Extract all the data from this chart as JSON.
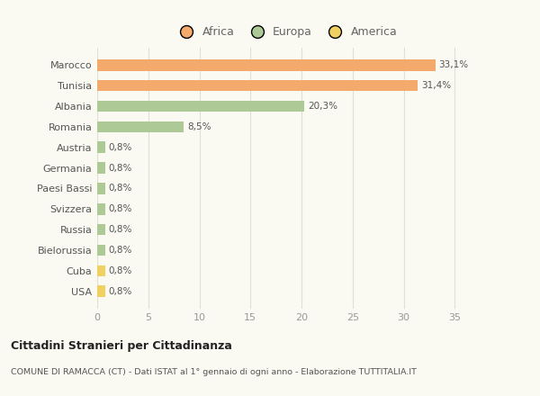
{
  "countries": [
    "Marocco",
    "Tunisia",
    "Albania",
    "Romania",
    "Austria",
    "Germania",
    "Paesi Bassi",
    "Svizzera",
    "Russia",
    "Bielorussia",
    "Cuba",
    "USA"
  ],
  "values": [
    33.1,
    31.4,
    20.3,
    8.5,
    0.8,
    0.8,
    0.8,
    0.8,
    0.8,
    0.8,
    0.8,
    0.8
  ],
  "labels": [
    "33,1%",
    "31,4%",
    "20,3%",
    "8,5%",
    "0,8%",
    "0,8%",
    "0,8%",
    "0,8%",
    "0,8%",
    "0,8%",
    "0,8%",
    "0,8%"
  ],
  "colors": [
    "#f4a96d",
    "#f4a96d",
    "#adc996",
    "#adc996",
    "#adc996",
    "#adc996",
    "#adc996",
    "#adc996",
    "#adc996",
    "#adc996",
    "#f0d060",
    "#f0d060"
  ],
  "legend_labels": [
    "Africa",
    "Europa",
    "America"
  ],
  "legend_colors": [
    "#f4a96d",
    "#adc996",
    "#f0d060"
  ],
  "title": "Cittadini Stranieri per Cittadinanza",
  "subtitle": "COMUNE DI RAMACCA (CT) - Dati ISTAT al 1° gennaio di ogni anno - Elaborazione TUTTITALIA.IT",
  "xlim": [
    0,
    37
  ],
  "xticks": [
    0,
    5,
    10,
    15,
    20,
    25,
    30,
    35
  ],
  "background_color": "#fafaf2",
  "bar_height": 0.55
}
